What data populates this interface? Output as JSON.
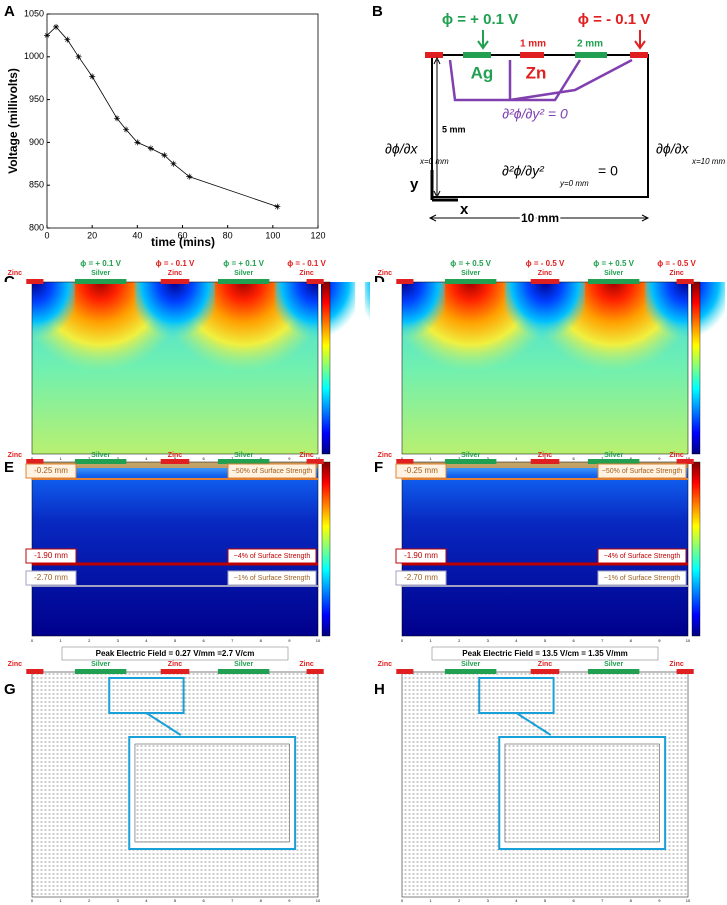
{
  "chart_data": {
    "type": "line",
    "label": "A",
    "x": [
      0,
      4,
      9,
      14,
      20,
      31,
      35,
      40,
      46,
      52,
      56,
      63,
      102
    ],
    "values": [
      1025,
      1035,
      1020,
      1000,
      977,
      928,
      915,
      900,
      893,
      885,
      875,
      860,
      825
    ],
    "color": "#000000",
    "xlabel": "time (mins)",
    "ylabel": "Voltage (millivolts)",
    "xlim": [
      0,
      120
    ],
    "xticks": [
      0,
      20,
      40,
      60,
      80,
      100,
      120
    ],
    "ylim": [
      800,
      1050
    ],
    "yticks": [
      800,
      850,
      900,
      950,
      1000,
      1050
    ]
  },
  "diagram": {
    "label": "B",
    "phi_pos": "ϕ = + 0.1 V",
    "phi_neg": "ϕ = - 0.1 V",
    "gap": "1 mm",
    "width": "2 mm",
    "ag": "Ag",
    "zn": "Zn",
    "laplace": "∂²ϕ/∂y² = 0",
    "left_bc": "∂ϕ/∂x",
    "left_sub": "x=0 mm",
    "right_bc": "∂ϕ/∂x",
    "right_sub": "x=10 mm",
    "height": "5 mm",
    "bottom_bc": "∂²ϕ/∂y²",
    "bottom_sub": "y=0 mm",
    "bottom_eq": "= 0",
    "y_axis": "y",
    "x_axis": "x",
    "length": "10 mm"
  },
  "axis_ticks": [
    0,
    1,
    2,
    3,
    4,
    5,
    6,
    7,
    8,
    9,
    10
  ],
  "field_panels": [
    {
      "label": "C",
      "potentials": [
        "ϕ = + 0.1 V",
        "ϕ = - 0.1 V",
        "ϕ = + 0.1 V",
        "ϕ = - 0.1 V"
      ],
      "electrodes": [
        "Zinc",
        "Silver",
        "Zinc",
        "Silver",
        "Zinc"
      ]
    },
    {
      "label": "D",
      "potentials": [
        "ϕ = + 0.5 V",
        "ϕ = - 0.5 V",
        "ϕ = + 0.5 V",
        "ϕ = - 0.5 V"
      ],
      "electrodes": [
        "Zinc",
        "Silver",
        "Zinc",
        "Silver",
        "Zinc"
      ]
    }
  ],
  "decay_panels": [
    {
      "label": "E",
      "electrodes": [
        "Zinc",
        "Silver",
        "Zinc",
        "Silver",
        "Zinc"
      ],
      "depths": [
        {
          "depth": "-0.25 mm",
          "strength": "~50% of Surface Strength"
        },
        {
          "depth": "-1.90 mm",
          "strength": "~4% of Surface Strength"
        },
        {
          "depth": "-2.70 mm",
          "strength": "~1% of Surface Strength"
        }
      ]
    },
    {
      "label": "F",
      "electrodes": [
        "Zinc",
        "Silver",
        "Zinc",
        "Silver",
        "Zinc"
      ],
      "depths": [
        {
          "depth": "-0.25 mm",
          "strength": "~50% of Surface Strength"
        },
        {
          "depth": "-1.90 mm",
          "strength": "~4% of Surface Strength"
        },
        {
          "depth": "-2.70 mm",
          "strength": "~1% of Surface Strength"
        }
      ]
    }
  ],
  "vector_panels": [
    {
      "label": "G",
      "peak": "Peak Electric Field = 0.27 V/mm =2.7 V/cm",
      "electrodes": [
        "Zinc",
        "Silver",
        "Zinc",
        "Silver",
        "Zinc"
      ]
    },
    {
      "label": "H",
      "peak": "Peak Electric Field = 13.5 V/cm = 1.35 V/mm",
      "electrodes": [
        "Zinc",
        "Silver",
        "Zinc",
        "Silver",
        "Zinc"
      ]
    }
  ]
}
